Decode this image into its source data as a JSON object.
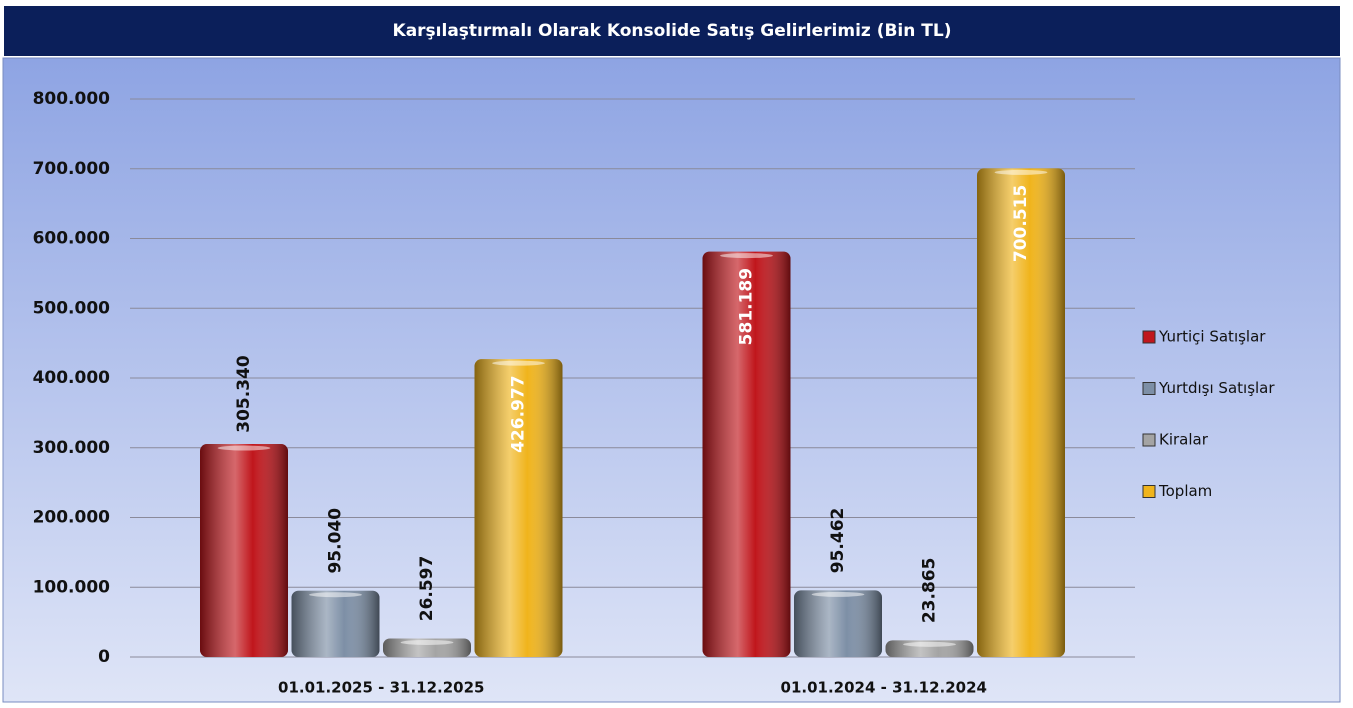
{
  "chart_data": {
    "type": "bar",
    "title": "Karşılaştırmalı Olarak Konsolide Satış Gelirlerimiz (Bin TL)",
    "categories": [
      "01.01.2025 - 31.12.2025",
      "01.01.2024 - 31.12.2024"
    ],
    "series": [
      {
        "name": "Yurtiçi Satışlar",
        "color": "#c0161c",
        "values": [
          305340,
          581189
        ],
        "value_labels": [
          "305.340",
          "581.189"
        ]
      },
      {
        "name": "Yurtdışı Satışlar",
        "color": "#7d8fa6",
        "values": [
          95040,
          95462
        ],
        "value_labels": [
          "95.040",
          "95.462"
        ]
      },
      {
        "name": "Kiralar",
        "color": "#a4a4a4",
        "values": [
          26597,
          23865
        ],
        "value_labels": [
          "26.597",
          "23.865"
        ]
      },
      {
        "name": "Toplam",
        "color": "#f0b41c",
        "values": [
          426977,
          700515
        ],
        "value_labels": [
          "426.977",
          "700.515"
        ]
      }
    ],
    "ylim": [
      0,
      800000
    ],
    "yticks": [
      0,
      {
        "value": 100000,
        "label": "100.000"
      },
      {
        "value": 200000,
        "label": "200.000"
      },
      {
        "value": 300000,
        "label": "300.000"
      },
      {
        "value": 400000,
        "label": "400.000"
      },
      {
        "value": 500000,
        "label": "500.000"
      },
      {
        "value": 600000,
        "label": "600.000"
      },
      {
        "value": 700000,
        "label": "700.000"
      },
      {
        "value": 800000,
        "label": "800.000"
      }
    ],
    "grid": true,
    "legend": "right"
  }
}
